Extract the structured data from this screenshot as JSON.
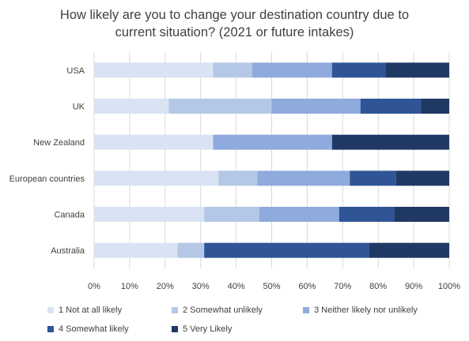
{
  "chart_data": {
    "type": "bar",
    "orientation": "horizontal",
    "stacking": "percent",
    "title_lines": [
      "How likely are you to change your destination country due to",
      "current situation? (2021 or future intakes)"
    ],
    "categories": [
      "USA",
      "UK",
      "New Zealand",
      "European countries",
      "Canada",
      "Australia"
    ],
    "series": [
      {
        "name": "1 Not at all likely",
        "color": "#dae3f3",
        "values": [
          33.5,
          21,
          33.5,
          35,
          31,
          23.5
        ]
      },
      {
        "name": "2 Somewhat unlikely",
        "color": "#b4c7e7",
        "values": [
          11,
          29,
          0,
          11,
          15.5,
          7.5
        ]
      },
      {
        "name": "3 Neither likely nor unlikely",
        "color": "#8faadc",
        "values": [
          22.5,
          25,
          33.5,
          26,
          22.5,
          0
        ]
      },
      {
        "name": "4 Somewhat likely",
        "color": "#2f5597",
        "values": [
          15,
          17,
          0,
          13,
          15.5,
          46.5
        ]
      },
      {
        "name": "5 Very Likely",
        "color": "#203864",
        "values": [
          18,
          8,
          33,
          15,
          15.5,
          22.5
        ]
      }
    ],
    "x_ticks": [
      "0%",
      "10%",
      "20%",
      "30%",
      "40%",
      "50%",
      "60%",
      "70%",
      "80%",
      "90%",
      "100%"
    ],
    "xlim": [
      0,
      100
    ],
    "grid": true,
    "legend_position": "bottom"
  }
}
